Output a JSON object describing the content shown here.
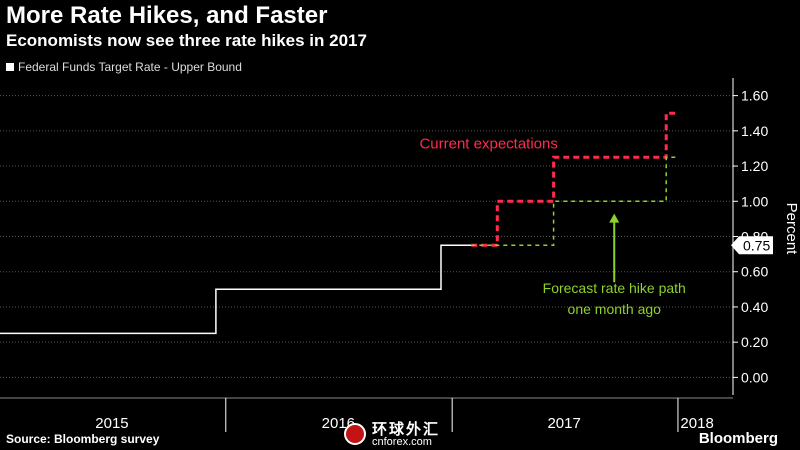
{
  "header": {
    "title": "More Rate Hikes, and Faster",
    "subtitle": "Economists now see three rate hikes in 2017",
    "legend_label": "Federal Funds Target Rate - Upper Bound"
  },
  "footer": {
    "source": "Source: Bloomberg survey",
    "brand": "Bloomberg",
    "watermark_cn": "环球外汇",
    "watermark_en": "cnforex.com"
  },
  "chart_data": {
    "type": "line",
    "ylabel": "Percent",
    "ylim": [
      -0.1,
      1.7
    ],
    "yticks": [
      0.0,
      0.2,
      0.4,
      0.6,
      0.8,
      1.0,
      1.2,
      1.4,
      1.6
    ],
    "ytick_labels": [
      "0.00",
      "0.20",
      "0.40",
      "0.60",
      "0.80",
      "1.00",
      "1.20",
      "1.40",
      "1.60"
    ],
    "xlim": [
      "2015-01-01",
      "2018-03-31"
    ],
    "x_year_labels": [
      {
        "label": "2015",
        "date": "2015-07-01"
      },
      {
        "label": "2016",
        "date": "2016-07-01"
      },
      {
        "label": "2017",
        "date": "2017-07-01"
      },
      {
        "label": "2018",
        "date": "2018-02-01"
      }
    ],
    "x_separators": [
      "2016-01-01",
      "2017-01-01",
      "2018-01-01"
    ],
    "current_value_label": "0.75",
    "current_value": 0.75,
    "series": [
      {
        "name": "Federal Funds Target Rate - Upper Bound",
        "color": "#ffffff",
        "style": "solid",
        "points": [
          [
            "2015-01-01",
            0.25
          ],
          [
            "2015-12-16",
            0.25
          ],
          [
            "2015-12-16",
            0.5
          ],
          [
            "2016-12-14",
            0.5
          ],
          [
            "2016-12-14",
            0.75
          ],
          [
            "2017-02-01",
            0.75
          ]
        ]
      },
      {
        "color": "#ff2b4e",
        "style": "dashed",
        "points": [
          [
            "2017-02-01",
            0.75
          ],
          [
            "2017-03-15",
            0.75
          ],
          [
            "2017-03-15",
            1.0
          ],
          [
            "2017-06-14",
            1.0
          ],
          [
            "2017-06-14",
            1.25
          ],
          [
            "2017-12-13",
            1.25
          ],
          [
            "2017-12-13",
            1.5
          ],
          [
            "2018-01-01",
            1.5
          ]
        ]
      },
      {
        "color": "#8fd12c",
        "style": "dashed",
        "points": [
          [
            "2017-02-01",
            0.75
          ],
          [
            "2017-06-14",
            0.75
          ],
          [
            "2017-06-14",
            1.0
          ],
          [
            "2017-12-13",
            1.0
          ],
          [
            "2017-12-13",
            1.25
          ],
          [
            "2018-01-01",
            1.25
          ]
        ]
      }
    ],
    "annotations": [
      {
        "text": "Current expectations",
        "color": "#ff2b4e",
        "date": "2017-03-01",
        "value": 1.3,
        "anchor": "middle"
      },
      {
        "text": "Forecast rate hike path",
        "date": "2017-09-20",
        "value": 0.48,
        "color": "#8fd12c",
        "anchor": "middle"
      },
      {
        "text": "one month ago",
        "date": "2017-09-20",
        "value": 0.36,
        "color": "#8fd12c",
        "anchor": "middle"
      }
    ],
    "arrow": {
      "date": "2017-09-20",
      "from_value": 0.54,
      "to_value": 0.93,
      "color": "#8fd12c"
    }
  }
}
